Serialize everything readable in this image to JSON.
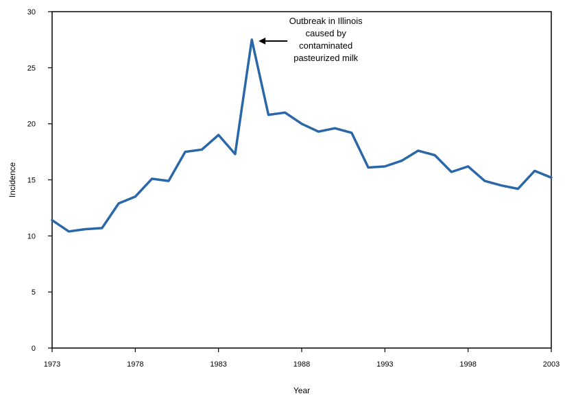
{
  "chart_data": {
    "type": "line",
    "title": "",
    "xlabel": "Year",
    "ylabel": "Incidence",
    "xlim": [
      1973,
      2003
    ],
    "ylim": [
      0,
      30
    ],
    "x_ticks": [
      1973,
      1978,
      1983,
      1988,
      1993,
      1998,
      2003
    ],
    "y_ticks": [
      0,
      5,
      10,
      15,
      20,
      25,
      30
    ],
    "grid": false,
    "legend": "none",
    "series": [
      {
        "color": "#2a67a8",
        "x": [
          1973,
          1974,
          1975,
          1976,
          1977,
          1978,
          1979,
          1980,
          1981,
          1982,
          1983,
          1984,
          1985,
          1986,
          1987,
          1988,
          1989,
          1990,
          1991,
          1992,
          1993,
          1994,
          1995,
          1996,
          1997,
          1998,
          1999,
          2000,
          2001,
          2002,
          2003
        ],
        "values": [
          11.4,
          10.4,
          10.6,
          10.7,
          12.9,
          13.5,
          15.1,
          14.9,
          17.5,
          17.7,
          19.0,
          17.3,
          27.5,
          20.8,
          21.0,
          20.0,
          19.3,
          19.6,
          19.2,
          16.1,
          16.2,
          16.7,
          17.6,
          17.2,
          15.7,
          16.2,
          14.9,
          14.5,
          14.2,
          15.8,
          15.2
        ]
      }
    ],
    "annotations": [
      {
        "lines": [
          "Outbreak in Illinois",
          "caused by",
          "contaminated",
          "pasteurized milk"
        ],
        "points_to_x": 1985,
        "points_to_y": 27.5
      }
    ]
  }
}
